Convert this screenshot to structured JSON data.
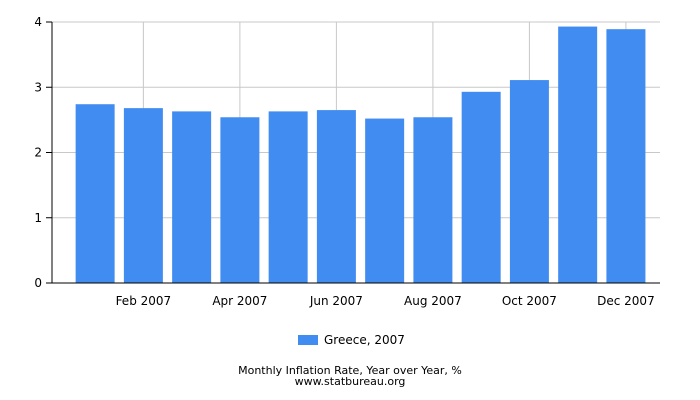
{
  "chart_data": {
    "type": "bar",
    "title": "Monthly Inflation Rate, Year over Year, %",
    "xlabel": "",
    "ylabel": "",
    "ylim": [
      0,
      4
    ],
    "yticks": [
      "0",
      "1",
      "2",
      "3",
      "4"
    ],
    "categories": [
      "Jan 2007",
      "Feb 2007",
      "Mar 2007",
      "Apr 2007",
      "May 2007",
      "Jun 2007",
      "Jul 2007",
      "Aug 2007",
      "Sep 2007",
      "Oct 2007",
      "Nov 2007",
      "Dec 2007"
    ],
    "xtick_labels": [
      "",
      "Feb 2007",
      "",
      "Apr 2007",
      "",
      "Jun 2007",
      "",
      "Aug 2007",
      "",
      "Oct 2007",
      "",
      "Dec 2007"
    ],
    "series": [
      {
        "name": "Greece, 2007",
        "values": [
          2.74,
          2.68,
          2.63,
          2.54,
          2.63,
          2.65,
          2.52,
          2.54,
          2.93,
          3.11,
          3.93,
          3.89
        ]
      }
    ],
    "grid": true,
    "legend_position": "bottom",
    "bar_color": "#418cf0"
  },
  "footer": {
    "source": "www.statbureau.org"
  }
}
